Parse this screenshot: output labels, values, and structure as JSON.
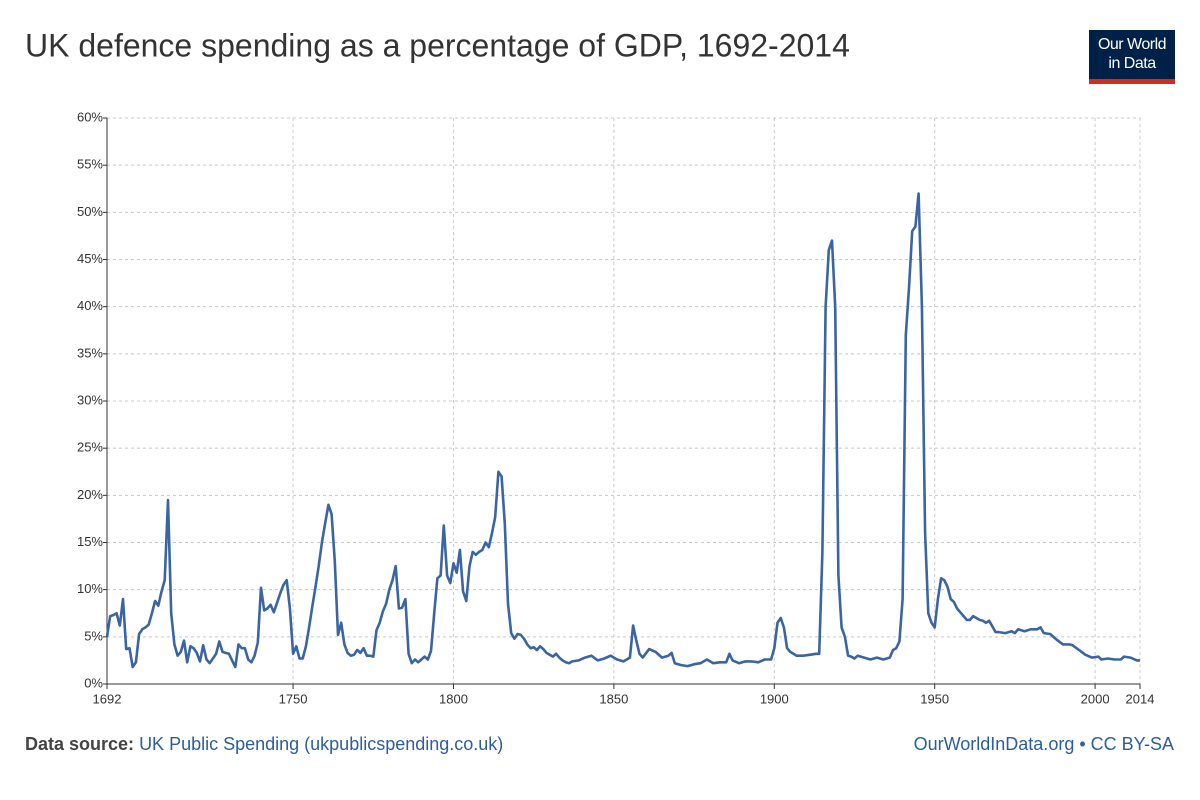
{
  "chart_data": {
    "type": "line",
    "title": "UK defence spending as a percentage of GDP, 1692-2014",
    "logo": [
      "Our World",
      "in Data"
    ],
    "source_label": "Data source:",
    "source": "UK Public Spending (ukpublicspending.co.uk)",
    "credit": "OurWorldInData.org • CC BY-SA",
    "x": [
      1692,
      1693,
      1694,
      1695,
      1696,
      1697,
      1698,
      1699,
      1700,
      1701,
      1702,
      1703,
      1704,
      1705,
      1706,
      1707,
      1708,
      1709,
      1710,
      1711,
      1712,
      1713,
      1714,
      1715,
      1716,
      1717,
      1718,
      1719,
      1720,
      1721,
      1722,
      1723,
      1724,
      1725,
      1726,
      1727,
      1728,
      1729,
      1730,
      1731,
      1732,
      1733,
      1734,
      1735,
      1736,
      1737,
      1738,
      1739,
      1740,
      1741,
      1742,
      1743,
      1744,
      1745,
      1746,
      1747,
      1748,
      1749,
      1750,
      1751,
      1752,
      1753,
      1754,
      1755,
      1756,
      1757,
      1758,
      1759,
      1760,
      1761,
      1762,
      1763,
      1764,
      1765,
      1766,
      1767,
      1768,
      1769,
      1770,
      1771,
      1772,
      1773,
      1774,
      1775,
      1776,
      1777,
      1778,
      1779,
      1780,
      1781,
      1782,
      1783,
      1784,
      1785,
      1786,
      1787,
      1788,
      1789,
      1790,
      1791,
      1792,
      1793,
      1794,
      1795,
      1796,
      1797,
      1798,
      1799,
      1800,
      1801,
      1802,
      1803,
      1804,
      1805,
      1806,
      1807,
      1808,
      1809,
      1810,
      1811,
      1812,
      1813,
      1814,
      1815,
      1816,
      1817,
      1818,
      1819,
      1820,
      1821,
      1822,
      1823,
      1824,
      1825,
      1826,
      1827,
      1828,
      1829,
      1830,
      1831,
      1832,
      1833,
      1834,
      1835,
      1836,
      1837,
      1839,
      1841,
      1843,
      1845,
      1847,
      1849,
      1851,
      1853,
      1855,
      1856,
      1857,
      1858,
      1859,
      1861,
      1863,
      1865,
      1867,
      1868,
      1869,
      1871,
      1873,
      1875,
      1877,
      1879,
      1881,
      1883,
      1885,
      1886,
      1887,
      1889,
      1891,
      1893,
      1895,
      1897,
      1899,
      1900,
      1901,
      1902,
      1903,
      1904,
      1905,
      1907,
      1909,
      1911,
      1913,
      1914,
      1915,
      1916,
      1917,
      1918,
      1919,
      1920,
      1921,
      1922,
      1923,
      1924,
      1925,
      1926,
      1928,
      1930,
      1932,
      1934,
      1936,
      1937,
      1938,
      1939,
      1940,
      1941,
      1942,
      1943,
      1944,
      1945,
      1946,
      1947,
      1948,
      1949,
      1950,
      1951,
      1952,
      1953,
      1954,
      1955,
      1956,
      1957,
      1958,
      1959,
      1960,
      1961,
      1962,
      1963,
      1964,
      1965,
      1966,
      1967,
      1968,
      1969,
      1970,
      1972,
      1974,
      1975,
      1976,
      1978,
      1980,
      1982,
      1983,
      1984,
      1986,
      1988,
      1990,
      1992,
      1993,
      1995,
      1997,
      1999,
      2001,
      2002,
      2004,
      2006,
      2008,
      2009,
      2011,
      2013,
      2014
    ],
    "series": [
      {
        "name": "United Kingdom",
        "color": "#3b64a3",
        "values": [
          5,
          7.2,
          7.3,
          7.5,
          6.2,
          9,
          3.7,
          3.8,
          1.8,
          2.3,
          5.3,
          5.8,
          6,
          6.3,
          7.5,
          8.8,
          8.3,
          9.8,
          11,
          19.5,
          7.5,
          4.2,
          3,
          3.4,
          4.6,
          2.3,
          4,
          3.8,
          3.3,
          2.4,
          4.1,
          2.6,
          2.2,
          2.7,
          3.2,
          4.5,
          3.4,
          3.3,
          3.2,
          2.5,
          1.8,
          4.2,
          3.8,
          3.8,
          2.6,
          2.3,
          3,
          4.4,
          10.2,
          7.8,
          8,
          8.4,
          7.6,
          8.6,
          9.6,
          10.5,
          11,
          8,
          3.2,
          4,
          2.7,
          2.7,
          4,
          6,
          8.2,
          10.3,
          12.5,
          15,
          17,
          19,
          18,
          13,
          5.2,
          6.5,
          4.2,
          3.3,
          3,
          3.1,
          3.6,
          3.3,
          3.8,
          3,
          3,
          2.9,
          5.7,
          6.5,
          7.7,
          8.5,
          10,
          11,
          12.5,
          8,
          8.1,
          9,
          3.2,
          2.2,
          2.6,
          2.3,
          2.6,
          2.9,
          2.6,
          3.5,
          7.5,
          11.2,
          11.5,
          16.8,
          11.5,
          10.7,
          12.8,
          11.8,
          14.2,
          9.8,
          8.8,
          12.5,
          14,
          13.7,
          14,
          14.2,
          15,
          14.5,
          16,
          17.7,
          22.5,
          22,
          17,
          8.5,
          5.4,
          4.8,
          5.3,
          5.2,
          4.8,
          4.2,
          3.8,
          3.9,
          3.6,
          4,
          3.7,
          3.3,
          3.1,
          2.9,
          3.2,
          2.8,
          2.5,
          2.3,
          2.2,
          2.4,
          2.5,
          2.8,
          3,
          2.5,
          2.7,
          3,
          2.6,
          2.4,
          2.8,
          6.2,
          4.6,
          3.2,
          2.8,
          3.7,
          3.4,
          2.8,
          3,
          3.3,
          2.2,
          2,
          1.9,
          2.1,
          2.2,
          2.6,
          2.2,
          2.3,
          2.3,
          3.2,
          2.5,
          2.2,
          2.4,
          2.4,
          2.3,
          2.6,
          2.6,
          3.8,
          6.5,
          7,
          6,
          3.8,
          3.4,
          3,
          3,
          3.1,
          3.2,
          3.2,
          14,
          40,
          46,
          47,
          40,
          11.5,
          6,
          5,
          3,
          2.9,
          2.7,
          3,
          2.8,
          2.6,
          2.8,
          2.6,
          2.8,
          3.6,
          3.8,
          4.5,
          9,
          37,
          42,
          48,
          48.5,
          52,
          40,
          16,
          7.5,
          6.5,
          6,
          9,
          11.2,
          11,
          10.3,
          9,
          8.7,
          8,
          7.6,
          7.2,
          6.8,
          6.8,
          7.2,
          7,
          6.8,
          6.7,
          6.5,
          6.7,
          6.1,
          5.5,
          5.5,
          5.4,
          5.6,
          5.4,
          5.8,
          5.6,
          5.8,
          5.8,
          6,
          5.4,
          5.3,
          4.7,
          4.2,
          4.2,
          4.1,
          3.6,
          3.1,
          2.8,
          2.9,
          2.6,
          2.7,
          2.6,
          2.6,
          2.9,
          2.8,
          2.5,
          2.5
        ]
      }
    ],
    "xlim": [
      1692,
      2014
    ],
    "xticks": [
      1692,
      1750,
      1800,
      1850,
      1900,
      1950,
      2000,
      2014
    ],
    "ylim": [
      0,
      60
    ],
    "yticks": [
      {
        "value": 0,
        "label": "0%"
      },
      {
        "value": 5,
        "label": "5%"
      },
      {
        "value": 10,
        "label": "10%"
      },
      {
        "value": 15,
        "label": "15%"
      },
      {
        "value": 20,
        "label": "20%"
      },
      {
        "value": 25,
        "label": "25%"
      },
      {
        "value": 30,
        "label": "30%"
      },
      {
        "value": 35,
        "label": "35%"
      },
      {
        "value": 40,
        "label": "40%"
      },
      {
        "value": 45,
        "label": "45%"
      },
      {
        "value": 50,
        "label": "50%"
      },
      {
        "value": 55,
        "label": "55%"
      },
      {
        "value": 60,
        "label": "60%"
      }
    ],
    "grid": true
  }
}
